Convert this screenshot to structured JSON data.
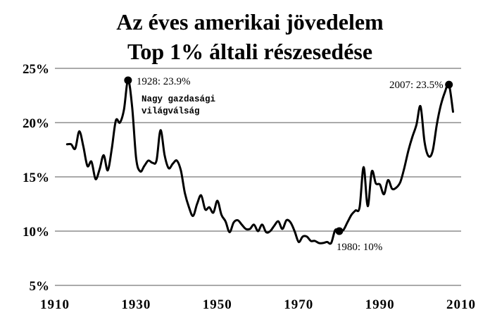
{
  "chart_data": {
    "type": "line",
    "title_lines": [
      "Az éves amerikai jövedelem",
      "Top 1% általi részesedése"
    ],
    "xlabel": "",
    "ylabel": "",
    "xlim": [
      1910,
      2010
    ],
    "ylim": [
      5,
      25
    ],
    "x_ticks": [
      1910,
      1930,
      1950,
      1970,
      1990,
      2010
    ],
    "y_ticks": [
      {
        "value": 5,
        "label": "5%"
      },
      {
        "value": 10,
        "label": "10%"
      },
      {
        "value": 15,
        "label": "15%"
      },
      {
        "value": 20,
        "label": "20%"
      },
      {
        "value": 25,
        "label": "25%"
      }
    ],
    "grid": "horizontal",
    "series": [
      {
        "x": [
          1913,
          1914,
          1915,
          1916,
          1917,
          1918,
          1919,
          1920,
          1921,
          1922,
          1923,
          1924,
          1925,
          1926,
          1927,
          1928,
          1929,
          1930,
          1931,
          1932,
          1933,
          1934,
          1935,
          1936,
          1937,
          1938,
          1939,
          1940,
          1941,
          1942,
          1943,
          1944,
          1945,
          1946,
          1947,
          1948,
          1949,
          1950,
          1951,
          1952,
          1953,
          1954,
          1955,
          1956,
          1957,
          1958,
          1959,
          1960,
          1961,
          1962,
          1963,
          1964,
          1965,
          1966,
          1967,
          1968,
          1969,
          1970,
          1971,
          1972,
          1973,
          1974,
          1975,
          1976,
          1977,
          1978,
          1979,
          1980,
          1981,
          1982,
          1983,
          1984,
          1985,
          1986,
          1987,
          1988,
          1989,
          1990,
          1991,
          1992,
          1993,
          1994,
          1995,
          1996,
          1997,
          1998,
          1999,
          2000,
          2001,
          2002,
          2003,
          2004,
          2005,
          2006,
          2007,
          2008
        ],
        "y": [
          18.0,
          18.0,
          17.6,
          19.2,
          17.8,
          16.0,
          16.4,
          14.8,
          15.7,
          17.0,
          15.6,
          17.6,
          20.2,
          20.0,
          21.2,
          23.9,
          21.5,
          16.7,
          15.5,
          16.0,
          16.5,
          16.3,
          16.5,
          19.3,
          17.0,
          15.8,
          16.2,
          16.5,
          15.6,
          13.5,
          12.2,
          11.4,
          12.5,
          13.3,
          12.0,
          12.2,
          11.7,
          12.8,
          11.5,
          10.9,
          9.9,
          10.8,
          11.0,
          10.6,
          10.2,
          10.2,
          10.6,
          10.0,
          10.6,
          9.9,
          10.0,
          10.5,
          10.9,
          10.2,
          11.0,
          10.8,
          10.0,
          9.0,
          9.5,
          9.5,
          9.1,
          9.1,
          8.9,
          8.9,
          9.0,
          8.9,
          10.1,
          10.0,
          10.1,
          10.8,
          11.5,
          11.9,
          12.2,
          15.9,
          12.3,
          15.5,
          14.4,
          14.3,
          13.4,
          14.7,
          13.9,
          14.0,
          14.5,
          15.8,
          17.4,
          18.7,
          19.8,
          21.5,
          18.2,
          16.9,
          17.4,
          19.8,
          21.6,
          22.8,
          23.5,
          21.0
        ]
      }
    ],
    "annotations": [
      {
        "x": 1928,
        "y": 23.9,
        "label": "1928: 23.9%"
      },
      {
        "x": 1980,
        "y": 10,
        "label": "1980: 10%"
      },
      {
        "x": 2007,
        "y": 23.5,
        "label": "2007: 23.5%"
      }
    ],
    "note_lines": [
      "Nagy gazdasági",
      "világválság"
    ]
  }
}
